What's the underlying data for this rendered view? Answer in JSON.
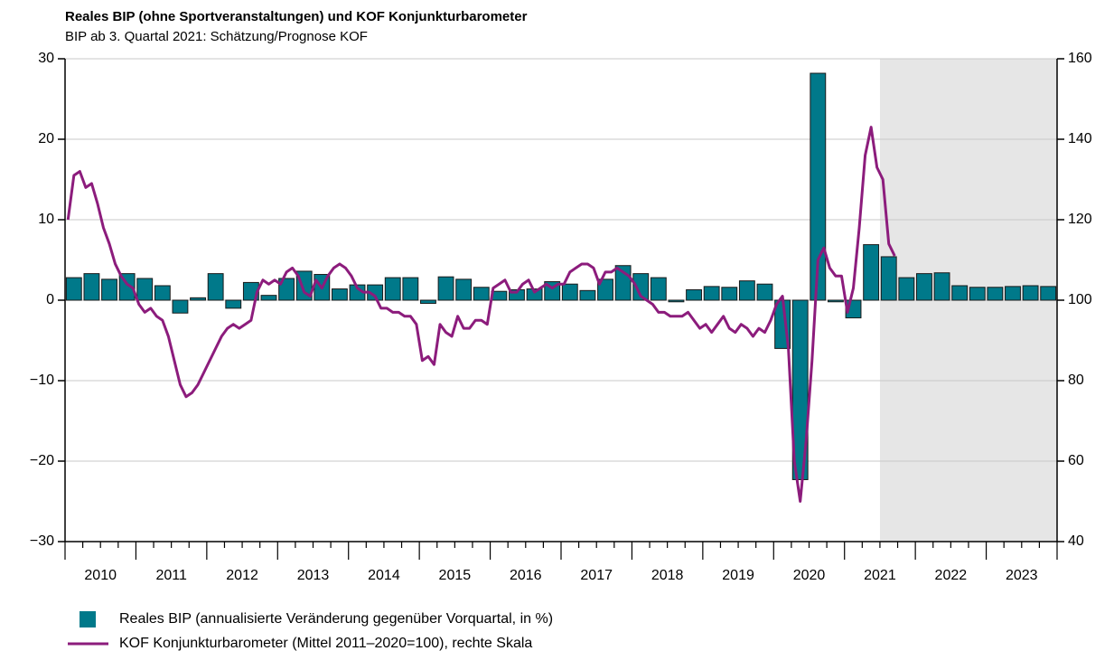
{
  "chart_data": {
    "type": "bar_line",
    "title": "Reales BIP (ohne Sportveranstaltungen) und KOF Konjunkturbarometer",
    "subtitle": "BIP ab 3. Quartal 2021: Schätzung/Prognose KOF",
    "x_labels": [
      "2010",
      "2011",
      "2012",
      "2013",
      "2014",
      "2015",
      "2016",
      "2017",
      "2018",
      "2019",
      "2020",
      "2021",
      "2022",
      "2023"
    ],
    "series": [
      {
        "name": "Reales BIP (annualisierte Veränderung gegenüber Vorquartal, in %)",
        "type": "bar",
        "color": "#00798a",
        "values": [
          2.8,
          3.3,
          2.6,
          3.3,
          2.7,
          1.8,
          -1.6,
          0.3,
          3.3,
          -1.0,
          2.2,
          0.6,
          2.7,
          3.6,
          3.2,
          1.4,
          1.9,
          1.9,
          2.8,
          2.8,
          -0.4,
          2.9,
          2.6,
          1.6,
          1.1,
          1.3,
          1.4,
          2.3,
          2.0,
          1.2,
          2.6,
          4.3,
          3.3,
          2.8,
          -0.2,
          1.3,
          1.7,
          1.6,
          2.4,
          2.0,
          -6.0,
          -22.3,
          28.2,
          -0.2,
          -2.2,
          6.9,
          5.4,
          2.8,
          3.3,
          3.4,
          1.8,
          1.6,
          1.6,
          1.7,
          1.8,
          1.7
        ]
      },
      {
        "name": "KOF Konjunkturbarometer (Mittel 2011–2020=100), rechte Skala",
        "type": "line",
        "axis": "y2",
        "color": "#8c1c7c",
        "values": [
          120,
          131,
          132,
          128,
          129,
          124,
          118,
          114,
          109,
          106,
          104,
          103,
          99,
          97,
          98,
          96,
          95,
          91,
          85,
          79,
          76,
          77,
          79,
          82,
          85,
          88,
          91,
          93,
          94,
          93,
          94,
          95,
          102,
          105,
          104,
          105,
          104,
          107,
          108,
          106,
          102,
          101,
          105,
          103,
          106,
          108,
          109,
          108,
          106,
          103,
          102,
          102,
          101,
          98,
          98,
          97,
          97,
          96,
          96,
          94,
          85,
          86,
          84,
          94,
          92,
          91,
          96,
          93,
          93,
          95,
          95,
          94,
          103,
          104,
          105,
          102,
          102,
          104,
          105,
          102,
          103,
          104,
          103,
          104,
          104,
          107,
          108,
          109,
          109,
          108,
          104,
          107,
          107,
          108,
          107,
          106,
          104,
          101,
          100,
          99,
          97,
          97,
          96,
          96,
          96,
          97,
          95,
          93,
          94,
          92,
          94,
          96,
          93,
          92,
          94,
          93,
          91,
          93,
          92,
          95,
          99,
          101,
          88,
          60,
          50,
          65,
          85,
          110,
          113,
          108,
          106,
          106,
          97,
          103,
          118,
          136,
          143,
          133,
          130,
          114,
          111
        ]
      }
    ],
    "ylim": [
      -30,
      30
    ],
    "yticks": [
      {
        "value": -30,
        "label": "−30"
      },
      {
        "value": -20,
        "label": "−20"
      },
      {
        "value": -10,
        "label": "−10"
      },
      0,
      10,
      20,
      30
    ],
    "y2lim": [
      40,
      160
    ],
    "y2ticks": [
      40,
      60,
      80,
      100,
      120,
      140,
      160
    ],
    "grid": true,
    "shade": {
      "from_quarter": 46,
      "color": "#e6e6e6"
    }
  }
}
